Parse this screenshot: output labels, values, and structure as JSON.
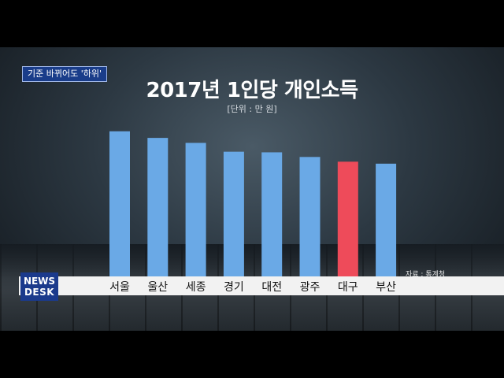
{
  "news_tag": "기준 바뀌어도 '하위'",
  "logo": {
    "line1": "NEWS",
    "line2": "DESK"
  },
  "source": "자료 : 통계청",
  "chart_data": {
    "type": "bar",
    "title": "2017년 1인당 개인소득",
    "subtitle": "[단위 : 만 원]",
    "categories": [
      "서울",
      "울산",
      "세종",
      "경기",
      "대전",
      "광주",
      "대구",
      "부산"
    ],
    "values": [
      2123,
      2026,
      1953,
      1824,
      1815,
      1747,
      1678,
      1649
    ],
    "ylim": [
      0,
      2200
    ],
    "grid": false,
    "colors": {
      "default": "#6aa9e6",
      "highlight": "#ee4b5a"
    },
    "highlight": "대구"
  }
}
